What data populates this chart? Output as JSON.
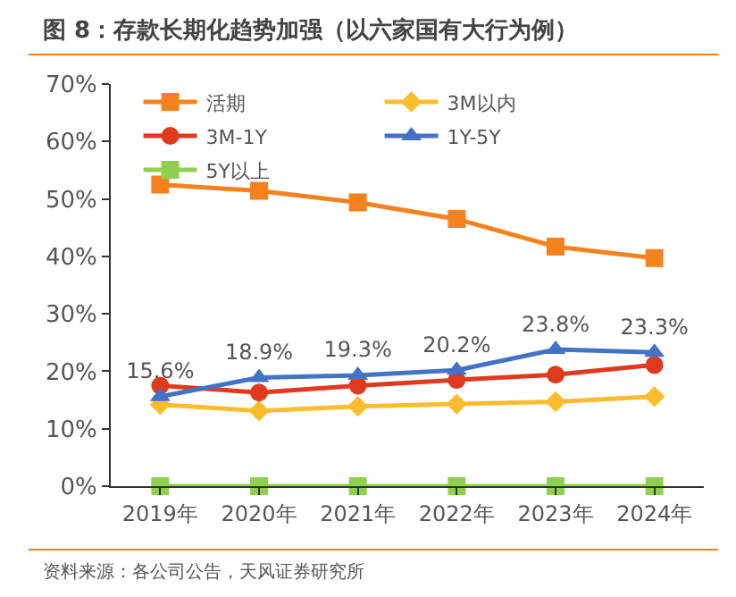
{
  "chart_data": {
    "type": "line",
    "title": "图 8：存款长期化趋势加强（以六家国有大行为例）",
    "annotations": [
      "资料来源：各公司公告，天风证券研究所"
    ],
    "categories": [
      "2019年",
      "2020年",
      "2021年",
      "2022年",
      "2023年",
      "2024年"
    ],
    "series": [
      {
        "name": "活期",
        "color": "#f5821f",
        "marker": "square",
        "values": [
          52.5,
          51.4,
          49.4,
          46.5,
          41.7,
          39.7
        ]
      },
      {
        "name": "3M以内",
        "color": "#fbbd2e",
        "marker": "diamond",
        "values": [
          14.2,
          13.1,
          13.9,
          14.3,
          14.7,
          15.6
        ]
      },
      {
        "name": "3M-1Y",
        "color": "#e03a1e",
        "marker": "circle",
        "values": [
          17.5,
          16.3,
          17.5,
          18.5,
          19.4,
          21.1
        ]
      },
      {
        "name": "1Y-5Y",
        "color": "#4472c4",
        "marker": "triangle",
        "values": [
          15.6,
          18.9,
          19.3,
          20.2,
          23.8,
          23.3
        ],
        "value_labels": [
          "15.6%",
          "18.9%",
          "19.3%",
          "20.2%",
          "23.8%",
          "23.3%"
        ]
      },
      {
        "name": "5Y以上",
        "color": "#8fd14f",
        "marker": "square",
        "values": [
          0,
          0,
          0,
          0,
          0,
          0
        ]
      }
    ],
    "ylim": [
      0,
      70
    ],
    "yticks": [
      {
        "value": 0,
        "label": "0%"
      },
      {
        "value": 10,
        "label": "10%"
      },
      {
        "value": 20,
        "label": "20%"
      },
      {
        "value": 30,
        "label": "30%"
      },
      {
        "value": 40,
        "label": "40%"
      },
      {
        "value": 50,
        "label": "50%"
      },
      {
        "value": 60,
        "label": "60%"
      },
      {
        "value": 70,
        "label": "70%"
      }
    ],
    "grid": false,
    "legend": "top",
    "line_style": "solid"
  }
}
